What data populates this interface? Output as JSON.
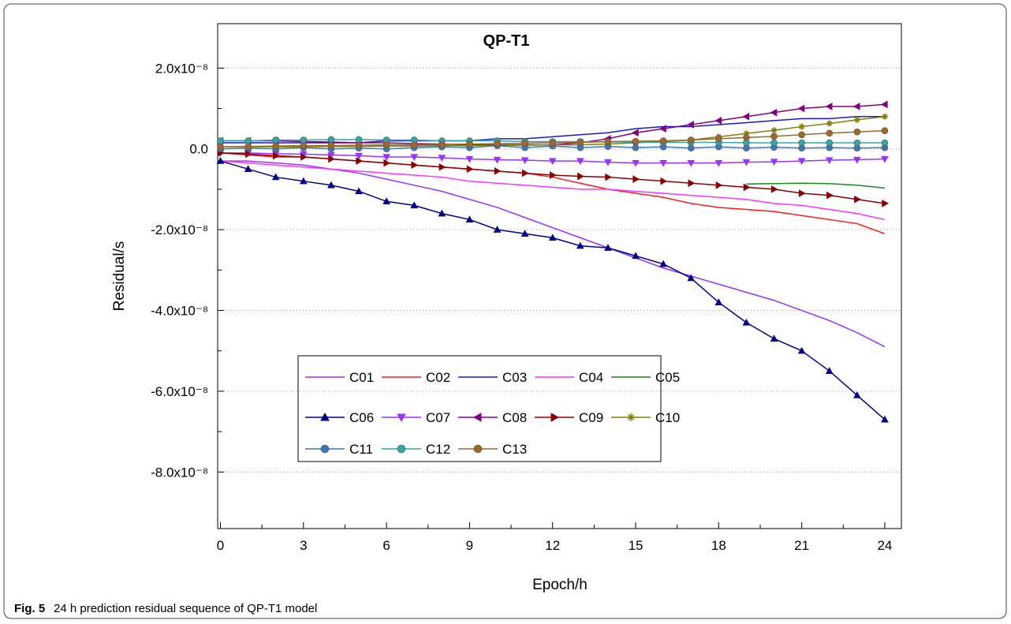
{
  "chart_data": {
    "type": "line",
    "title": "QP-T1",
    "xlabel": "Epoch/h",
    "ylabel": "Residual/s",
    "caption_label": "Fig. 5",
    "caption": "24 h prediction residual sequence of QP-T1 model",
    "xlim": [
      -0.1,
      24.6
    ],
    "ylim": [
      -9.4e-08,
      3.1e-08
    ],
    "xticks": [
      0,
      3,
      6,
      9,
      12,
      15,
      18,
      21,
      24
    ],
    "yticks": [
      {
        "value": -8e-08,
        "label": "-8.0x10⁻⁸"
      },
      {
        "value": -6e-08,
        "label": "-6.0x10⁻⁸"
      },
      {
        "value": -4e-08,
        "label": "-4.0x10⁻⁸"
      },
      {
        "value": -2e-08,
        "label": "-2.0x10⁻⁸"
      },
      {
        "value": 0,
        "label": "0.0"
      },
      {
        "value": 2e-08,
        "label": "2.0x10⁻⁸"
      }
    ],
    "grid": true,
    "x": [
      0,
      1,
      2,
      3,
      4,
      5,
      6,
      7,
      8,
      9,
      10,
      11,
      12,
      13,
      14,
      15,
      16,
      17,
      18,
      19,
      20,
      21,
      22,
      23,
      24
    ],
    "series": [
      {
        "name": "C01",
        "color": "#9b30ff",
        "marker": "none",
        "values": [
          -3e-09,
          -3e-09,
          -3.5e-09,
          -4e-09,
          -5e-09,
          -6e-09,
          -7.5e-09,
          -9e-09,
          -1.05e-08,
          -1.25e-08,
          -1.45e-08,
          -1.7e-08,
          -1.95e-08,
          -2.2e-08,
          -2.45e-08,
          -2.7e-08,
          -2.95e-08,
          -3.15e-08,
          -3.35e-08,
          -3.55e-08,
          -3.75e-08,
          -4e-08,
          -4.25e-08,
          -4.55e-08,
          -4.9e-08
        ]
      },
      {
        "name": "C02",
        "color": "#ff1a1a",
        "marker": "none",
        "values": [
          -1e-09,
          -1.5e-09,
          -2e-09,
          -2e-09,
          -2.5e-09,
          -3e-09,
          -3.5e-09,
          -4e-09,
          -4.5e-09,
          -5e-09,
          -5.5e-09,
          -6e-09,
          -7e-09,
          -8.5e-09,
          -1e-08,
          -1.1e-08,
          -1.2e-08,
          -1.35e-08,
          -1.45e-08,
          -1.5e-08,
          -1.55e-08,
          -1.65e-08,
          -1.75e-08,
          -1.85e-08,
          -2.1e-08
        ]
      },
      {
        "name": "C03",
        "color": "#1a1acc",
        "marker": "none",
        "values": [
          1.5e-09,
          1.5e-09,
          1.5e-09,
          1.5e-09,
          1.5e-09,
          1.5e-09,
          2e-09,
          2e-09,
          2e-09,
          2e-09,
          2.5e-09,
          2.5e-09,
          3e-09,
          3.5e-09,
          4e-09,
          5e-09,
          5.5e-09,
          5.5e-09,
          6e-09,
          6.5e-09,
          7e-09,
          7.5e-09,
          7.5e-09,
          8e-09,
          8e-09
        ]
      },
      {
        "name": "C04",
        "color": "#ff33ff",
        "marker": "none",
        "values": [
          -3e-09,
          -3.5e-09,
          -4e-09,
          -4.5e-09,
          -5e-09,
          -5.5e-09,
          -6e-09,
          -6.5e-09,
          -7e-09,
          -8e-09,
          -8.5e-09,
          -9e-09,
          -9.5e-09,
          -1e-08,
          -1e-08,
          -1.05e-08,
          -1.1e-08,
          -1.15e-08,
          -1.2e-08,
          -1.25e-08,
          -1.35e-08,
          -1.4e-08,
          -1.5e-08,
          -1.6e-08,
          -1.75e-08
        ]
      },
      {
        "name": "C05",
        "color": "#1a8a1a",
        "marker": "none",
        "values": [
          null,
          null,
          null,
          null,
          null,
          null,
          null,
          null,
          null,
          null,
          null,
          null,
          null,
          null,
          null,
          null,
          null,
          null,
          null,
          -8.7e-09,
          -8.6e-09,
          -8.5e-09,
          -8.6e-09,
          -9e-09,
          -9.7e-09
        ]
      },
      {
        "name": "C06",
        "color": "#00008b",
        "marker": "triangle-up",
        "values": [
          -3e-09,
          -5e-09,
          -7e-09,
          -8e-09,
          -9e-09,
          -1.05e-08,
          -1.3e-08,
          -1.4e-08,
          -1.6e-08,
          -1.75e-08,
          -2e-08,
          -2.1e-08,
          -2.2e-08,
          -2.4e-08,
          -2.45e-08,
          -2.65e-08,
          -2.85e-08,
          -3.2e-08,
          -3.8e-08,
          -4.3e-08,
          -4.7e-08,
          -5e-08,
          -5.5e-08,
          -6.1e-08,
          -6.7e-08
        ]
      },
      {
        "name": "C07",
        "color": "#9933ff",
        "marker": "triangle-down",
        "values": [
          -1e-09,
          -1e-09,
          -1.2e-09,
          -1.3e-09,
          -1.5e-09,
          -1.7e-09,
          -2e-09,
          -2e-09,
          -2.2e-09,
          -2.5e-09,
          -2.7e-09,
          -2.8e-09,
          -3e-09,
          -3e-09,
          -3.3e-09,
          -3.5e-09,
          -3.5e-09,
          -3.5e-09,
          -3.5e-09,
          -3.3e-09,
          -3.2e-09,
          -3e-09,
          -2.8e-09,
          -2.7e-09,
          -2.5e-09
        ]
      },
      {
        "name": "C08",
        "color": "#800080",
        "marker": "triangle-left",
        "values": [
          2e-09,
          2e-09,
          2e-09,
          1.8e-09,
          1.7e-09,
          1.5e-09,
          1.5e-09,
          1.3e-09,
          1.2e-09,
          1e-09,
          1e-09,
          1e-09,
          1e-09,
          1.5e-09,
          2.5e-09,
          4e-09,
          5e-09,
          6e-09,
          7e-09,
          8e-09,
          9e-09,
          1e-08,
          1.05e-08,
          1.05e-08,
          1.1e-08
        ]
      },
      {
        "name": "C09",
        "color": "#8b0000",
        "marker": "triangle-right",
        "values": [
          -1e-09,
          -1.3e-09,
          -1.7e-09,
          -2e-09,
          -2.5e-09,
          -3e-09,
          -3.5e-09,
          -4e-09,
          -4.5e-09,
          -5e-09,
          -5.5e-09,
          -6e-09,
          -6.5e-09,
          -6.8e-09,
          -7e-09,
          -7.5e-09,
          -8e-09,
          -8.5e-09,
          -9e-09,
          -9.5e-09,
          -1e-08,
          -1.1e-08,
          -1.15e-08,
          -1.25e-08,
          -1.35e-08
        ]
      },
      {
        "name": "C10",
        "color": "#808000",
        "marker": "star",
        "values": [
          5e-10,
          5e-10,
          5e-10,
          5e-10,
          6e-10,
          6e-10,
          7e-10,
          7e-10,
          8e-10,
          8e-10,
          9e-10,
          9e-10,
          1e-09,
          1e-09,
          1.2e-09,
          1.5e-09,
          1.8e-09,
          2.2e-09,
          3e-09,
          3.8e-09,
          4.6e-09,
          5.5e-09,
          6.3e-09,
          7.2e-09,
          8e-09
        ]
      },
      {
        "name": "C11",
        "color": "#3a78b8",
        "marker": "circle",
        "values": [
          0.0,
          2e-10,
          0.0,
          3e-10,
          0.0,
          2e-10,
          0.0,
          3e-10,
          5e-10,
          3e-10,
          8e-10,
          3e-10,
          7e-10,
          3e-10,
          6e-10,
          3e-10,
          5e-10,
          2e-10,
          5e-10,
          2e-10,
          4e-10,
          2e-10,
          3e-10,
          2e-10,
          3e-10
        ]
      },
      {
        "name": "C12",
        "color": "#30a8a8",
        "marker": "circle",
        "values": [
          2e-09,
          2e-09,
          2.2e-09,
          2.2e-09,
          2.3e-09,
          2.3e-09,
          2.2e-09,
          2.2e-09,
          2e-09,
          2e-09,
          2e-09,
          1.8e-09,
          1.8e-09,
          1.8e-09,
          1.7e-09,
          1.7e-09,
          1.6e-09,
          1.6e-09,
          1.6e-09,
          1.5e-09,
          1.5e-09,
          1.5e-09,
          1.5e-09,
          1.5e-09,
          1.5e-09
        ]
      },
      {
        "name": "C13",
        "color": "#a0662a",
        "marker": "circle",
        "values": [
          5e-10,
          6e-10,
          7e-10,
          8e-10,
          8e-10,
          9e-10,
          1e-09,
          1e-09,
          1.1e-09,
          1.2e-09,
          1.3e-09,
          1.4e-09,
          1.5e-09,
          1.6e-09,
          1.8e-09,
          1.9e-09,
          2e-09,
          2.2e-09,
          2.5e-09,
          2.8e-09,
          3.1e-09,
          3.5e-09,
          3.9e-09,
          4.2e-09,
          4.5e-09
        ]
      }
    ]
  }
}
